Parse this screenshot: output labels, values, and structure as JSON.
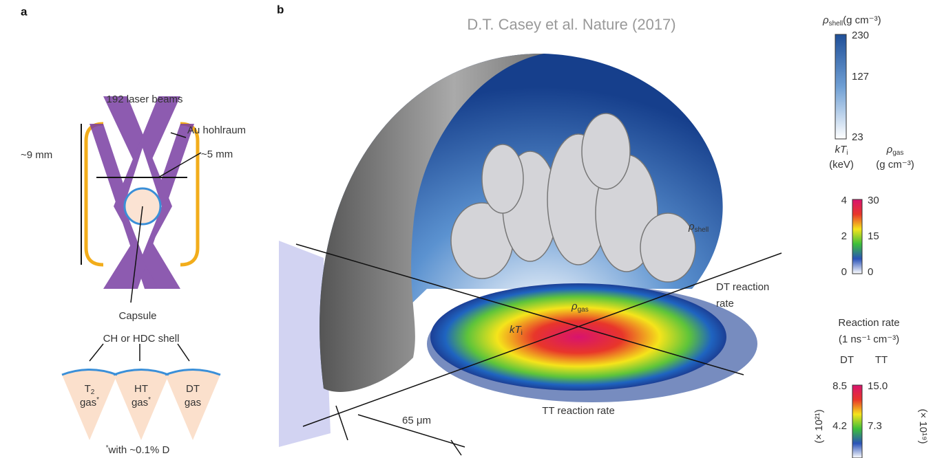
{
  "panel_a": {
    "label": "a",
    "beams": "192 laser beams",
    "hohlraum": "Au hohlraum",
    "height": "~9 mm",
    "width": "~5 mm",
    "capsule": "Capsule",
    "shell": "CH or HDC shell",
    "gases": [
      {
        "name": "T",
        "sub": "2",
        "gas": "gas",
        "sup": "*"
      },
      {
        "name": "HT",
        "sub": "",
        "gas": "gas",
        "sup": "*"
      },
      {
        "name": "DT",
        "sub": "",
        "gas": "gas",
        "sup": ""
      }
    ],
    "footnote_mark": "*",
    "footnote": "with ~0.1% D"
  },
  "panel_b": {
    "label": "b",
    "citation": "D.T. Casey et al. Nature (2017)",
    "rho_shell": {
      "symbol": "ρ",
      "sub": "shell"
    },
    "rho_gas": {
      "symbol": "ρ",
      "sub": "gas"
    },
    "kti": {
      "symbol": "kT",
      "sub": "i"
    },
    "dt_rate": [
      "DT reaction",
      "rate"
    ],
    "tt_rate": "TT reaction rate",
    "scale": "65 μm"
  },
  "colorbars": {
    "shell": {
      "symbol": "ρ",
      "sub": "shell",
      "unit": "(g cm⁻³)",
      "ticks": [
        "230",
        "127",
        "23"
      ]
    },
    "temp": {
      "left_symbol": "kT",
      "left_sub": "i",
      "left_unit": "(keV)",
      "right_symbol": "ρ",
      "right_sub": "gas",
      "right_unit": "(g cm⁻³)",
      "left_ticks": [
        "4",
        "2",
        "0"
      ],
      "right_ticks": [
        "30",
        "15",
        "0"
      ]
    },
    "rate": {
      "title": "Reaction rate",
      "unit": "(1 ns⁻¹ cm⁻³)",
      "left_head": "DT",
      "right_head": "TT",
      "left_ticks": [
        "8.5",
        "4.2"
      ],
      "right_ticks": [
        "15.0",
        "7.3"
      ],
      "left_scale": "(× 10²¹)",
      "right_scale": "(× 10¹⁹)"
    }
  }
}
